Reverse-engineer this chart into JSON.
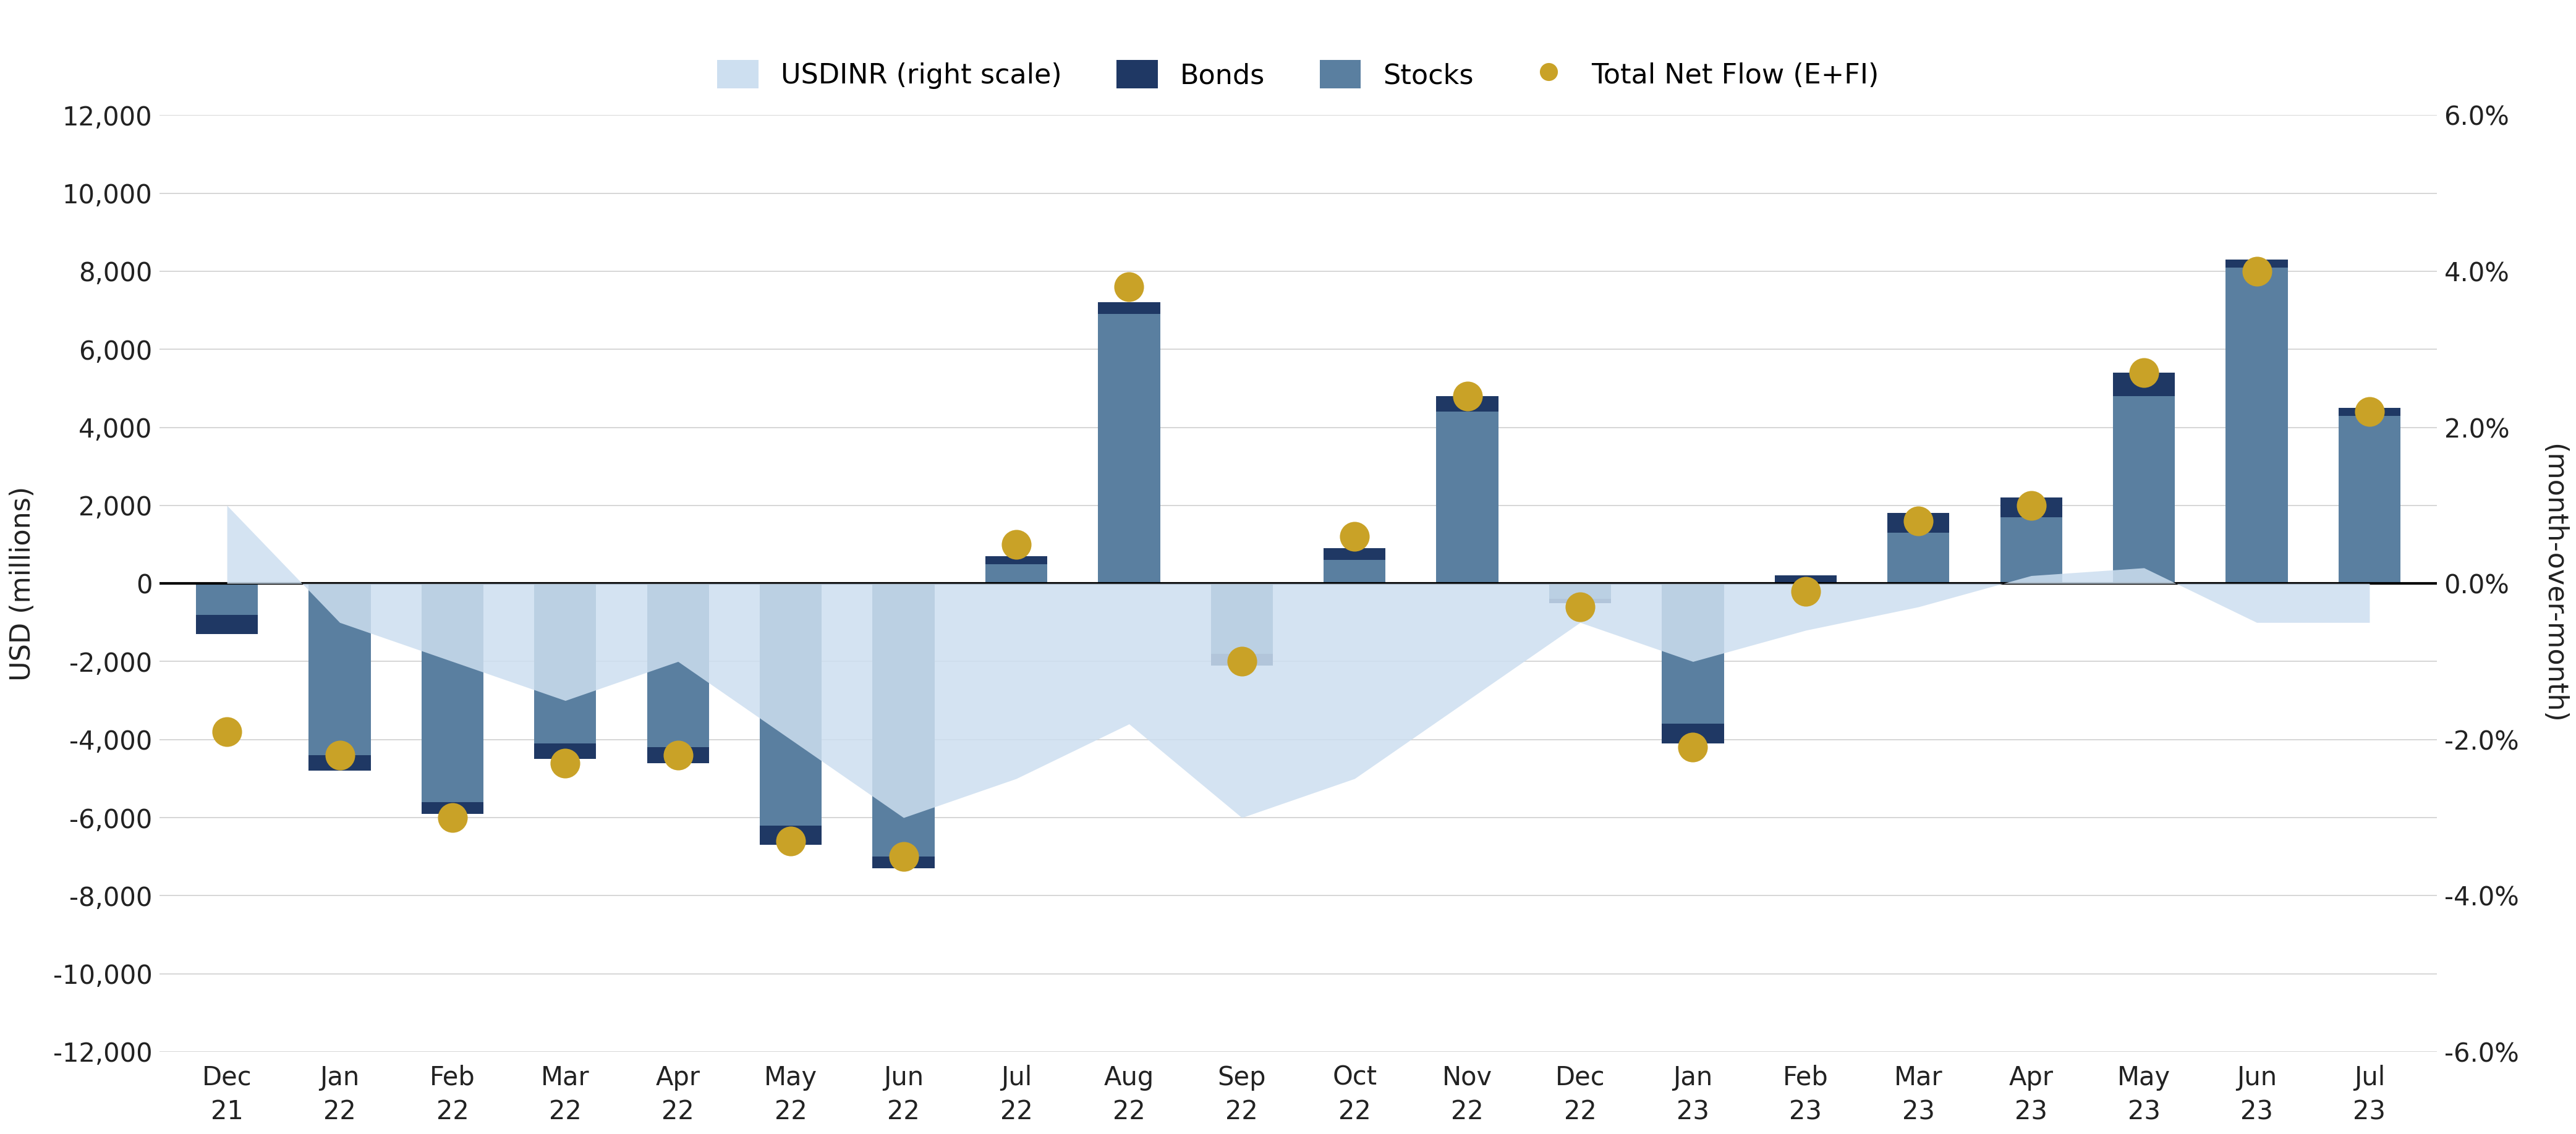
{
  "categories": [
    "Dec\n21",
    "Jan\n22",
    "Feb\n22",
    "Mar\n22",
    "Apr\n22",
    "May\n22",
    "Jun\n22",
    "Jul\n22",
    "Aug\n22",
    "Sep\n22",
    "Oct\n22",
    "Nov\n22",
    "Dec\n22",
    "Jan\n23",
    "Feb\n23",
    "Mar\n23",
    "Apr\n23",
    "May\n23",
    "Jun\n23",
    "Jul\n23"
  ],
  "bonds": [
    -500,
    400,
    -300,
    -400,
    -400,
    -500,
    -300,
    -200,
    -300,
    -300,
    -300,
    -400,
    -100,
    500,
    -200,
    -500,
    -500,
    -600,
    200,
    -200
  ],
  "stocks": [
    -800,
    -4800,
    -5600,
    -4100,
    -4200,
    -6200,
    -7000,
    700,
    7200,
    -1800,
    900,
    4800,
    -400,
    -4100,
    200,
    1800,
    2200,
    5400,
    8100,
    4500
  ],
  "total_net_flow": [
    -0.019,
    -0.022,
    -0.03,
    -0.023,
    -0.022,
    -0.033,
    -0.035,
    0.005,
    0.038,
    -0.01,
    0.006,
    0.024,
    -0.003,
    -0.021,
    -0.001,
    0.008,
    0.01,
    0.027,
    0.04,
    0.022
  ],
  "usdinr_values": [
    0.01,
    -0.005,
    -0.01,
    -0.015,
    -0.01,
    -0.02,
    -0.03,
    -0.025,
    -0.018,
    -0.03,
    -0.025,
    -0.015,
    -0.005,
    -0.01,
    -0.006,
    -0.003,
    0.001,
    0.002,
    -0.005,
    -0.005
  ],
  "bonds_color": "#1f3864",
  "stocks_color": "#5a7fa0",
  "total_net_flow_color": "#c9a227",
  "usdinr_fill_color": "#cddff0",
  "ylim_left": [
    -12000,
    12000
  ],
  "ylim_right": [
    -0.06,
    0.06
  ],
  "yticks_left": [
    -12000,
    -10000,
    -8000,
    -6000,
    -4000,
    -2000,
    0,
    2000,
    4000,
    6000,
    8000,
    10000,
    12000
  ],
  "yticks_right": [
    -0.06,
    -0.04,
    -0.02,
    0.0,
    0.02,
    0.04,
    0.06
  ],
  "ylabel_left": "USD (millions)",
  "ylabel_right": "(month-over-month)",
  "legend_labels": [
    "USDINR (right scale)",
    "Bonds",
    "Stocks",
    "Total Net Flow (E+FI)"
  ],
  "background_color": "#ffffff",
  "grid_color": "#d0d0d0",
  "bar_width": 0.55
}
